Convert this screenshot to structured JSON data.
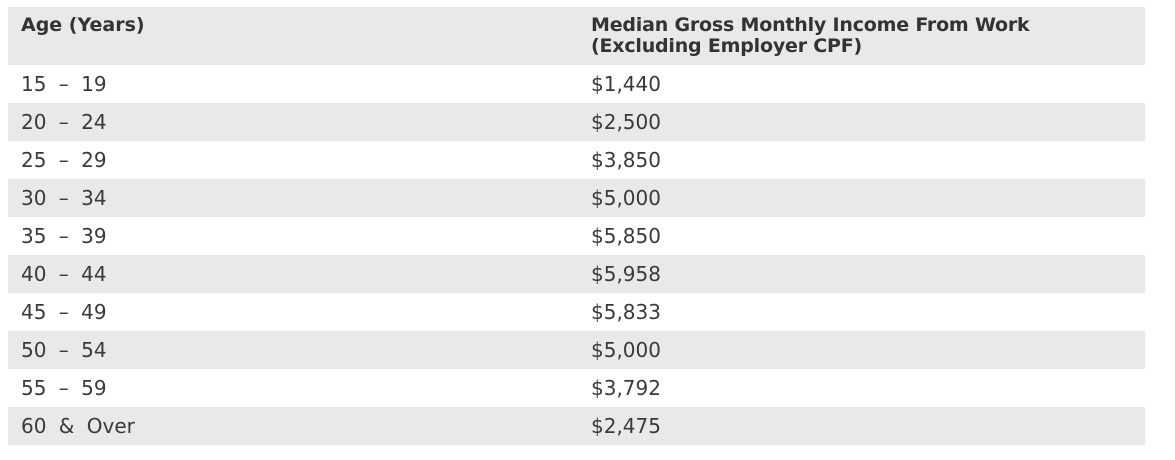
{
  "table": {
    "headers": {
      "age": "Age (Years)",
      "income": "Median Gross Monthly Income From Work (Excluding Employer CPF)"
    },
    "rows": [
      {
        "age": "15 – 19",
        "income": "$1,440"
      },
      {
        "age": "20 – 24",
        "income": "$2,500"
      },
      {
        "age": "25 – 29",
        "income": "$3,850"
      },
      {
        "age": "30 – 34",
        "income": "$5,000"
      },
      {
        "age": "35 – 39",
        "income": "$5,850"
      },
      {
        "age": "40 – 44",
        "income": "$5,958"
      },
      {
        "age": "45 – 49",
        "income": "$5,833"
      },
      {
        "age": "50 – 54",
        "income": "$5,000"
      },
      {
        "age": "55 – 59",
        "income": "$3,792"
      },
      {
        "age": "60 & Over",
        "income": "$2,475"
      }
    ]
  },
  "colors": {
    "header_bg": "#e9e9e9",
    "stripe_bg": "#e9e9e9",
    "text": "#333333"
  }
}
